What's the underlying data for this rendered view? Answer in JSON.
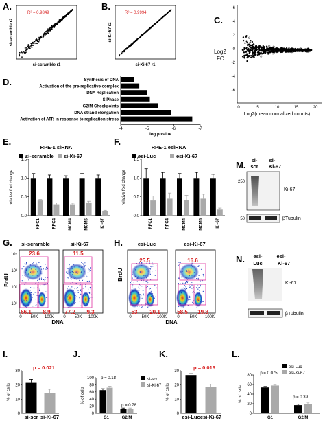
{
  "panels": {
    "A": {
      "label": "A.",
      "xlabel": "si-scramble r1",
      "ylabel": "si-scramble r2",
      "r2": "R² = 0.9849"
    },
    "B": {
      "label": "B.",
      "xlabel": "si-Ki-67 r1",
      "ylabel": "si-Ki-67 r2",
      "r2": "R² = 0.9994"
    },
    "C": {
      "label": "C.",
      "ylabel_line1": "Log2",
      "ylabel_line2": "FC",
      "xlabel": "Log2(mean normalized counts)",
      "xticks": [
        "0",
        "5",
        "10",
        "15",
        "20"
      ],
      "yticks": [
        "6",
        "4",
        "2",
        "0",
        "-2",
        "-4",
        "-6"
      ]
    },
    "D": {
      "label": "D.",
      "xlabel": "log p-value",
      "xticks": [
        "-4",
        "-5",
        "-6",
        "-7"
      ]
    },
    "E": {
      "label": "E.",
      "title": "RPE-1 siRNA",
      "ylabel": "relative fold change",
      "legend": [
        "si-scramble",
        "si-Ki-67"
      ],
      "yticks": [
        "0.0",
        "0.5",
        "1.0",
        "1.5"
      ]
    },
    "F": {
      "label": "F.",
      "title": "RPE-1 esiRNA",
      "ylabel": "relative fold change",
      "legend": [
        "esi-Luc",
        "esi-Ki-67"
      ],
      "yticks": [
        "0.0",
        "0.5",
        "1.0",
        "1.5"
      ]
    },
    "G": {
      "label": "G.",
      "left_title": "si-scramble",
      "right_title": "si-Ki-67",
      "ylabel": "BrdU",
      "xlabel": "DNA",
      "xticks": [
        "0",
        "50K",
        "100K"
      ],
      "yticks": [
        "10⁴",
        "10³",
        "10²",
        "10¹"
      ],
      "left_gates": [
        "23.6",
        "66.1",
        "8.9"
      ],
      "right_gates": [
        "11.5",
        "77.2",
        "9.3"
      ]
    },
    "H": {
      "label": "H.",
      "left_title": "esi-Luc",
      "right_title": "esi-Ki-67",
      "ylabel": "BrdU",
      "xlabel": "DNA",
      "xticks": [
        "0",
        "50K",
        "100K"
      ],
      "left_gates": [
        "25.5",
        "53",
        "20.1"
      ],
      "right_gates": [
        "16.6",
        "58.5",
        "19.8"
      ]
    },
    "I": {
      "label": "I.",
      "ylabel": "% of cells",
      "pvalue": "p = 0.021",
      "yticks": [
        "0",
        "10",
        "20",
        "30"
      ]
    },
    "J": {
      "label": "J.",
      "ylabel": "% of cells",
      "legend": [
        "si-scr",
        "si-Ki-67"
      ],
      "p1": "p = 0.18",
      "p2": "p = 0.78",
      "yticks": [
        "0",
        "20",
        "40",
        "60",
        "80",
        "100"
      ]
    },
    "K": {
      "label": "K.",
      "ylabel": "% of cells",
      "pvalue": "p = 0.016",
      "yticks": [
        "0",
        "10",
        "20",
        "30"
      ]
    },
    "L": {
      "label": "L.",
      "ylabel": "% of cells",
      "legend": [
        "esi-Luc",
        "esi-Ki-67"
      ],
      "p1": "p = 0.075",
      "p2": "p = 0.39",
      "yticks": [
        "0",
        "20",
        "40",
        "60",
        "80"
      ]
    },
    "M": {
      "label": "M.",
      "lane1_line1": "si-",
      "lane1_line2": "scr",
      "lane2_line1": "si-",
      "lane2_line2": "Ki-67",
      "marker_250": "250",
      "marker_50": "50",
      "band1": "Ki-67",
      "band2": "βTubulin"
    },
    "N": {
      "label": "N.",
      "lane1_line1": "esi-",
      "lane1_line2": "Luc",
      "lane2_line1": "esi-",
      "lane2_line2": "Ki-67",
      "band1": "Ki-67",
      "band2": "βTubulin"
    }
  },
  "colors": {
    "series1": "#000000",
    "series2": "#a9a9a9",
    "pvalue": "#d82020"
  },
  "chart_data": [
    {
      "id": "D",
      "type": "bar",
      "categories": [
        "Synthesis of DNA",
        "Activation of the pre-replicative complex",
        "DNA Replication",
        "S Phase",
        "G2/M Checkpoints",
        "DNA strand elongation",
        "Activation of ATR in response to replication stress"
      ],
      "values": [
        -4.5,
        -4.7,
        -5.0,
        -5.1,
        -5.4,
        -5.9,
        -6.7
      ],
      "xlabel": "log p-value",
      "xlim": [
        -4,
        -7
      ]
    },
    {
      "id": "E",
      "type": "bar",
      "title": "RPE-1 siRNA",
      "categories": [
        "RFC1",
        "RFC4",
        "MCM4",
        "MCM5",
        "Ki-67"
      ],
      "series": [
        {
          "name": "si-scramble",
          "values": [
            1.0,
            1.0,
            1.0,
            1.0,
            1.0
          ],
          "errors": [
            0.12,
            0.08,
            0.06,
            0.12,
            0.08
          ]
        },
        {
          "name": "si-Ki-67",
          "values": [
            0.4,
            0.3,
            0.3,
            0.35,
            0.12
          ],
          "errors": [
            0.03,
            0.04,
            0.03,
            0.03,
            0.02
          ]
        }
      ],
      "ylabel": "relative fold change",
      "ylim": [
        0,
        1.5
      ]
    },
    {
      "id": "F",
      "type": "bar",
      "title": "RPE-1 esiRNA",
      "categories": [
        "RFC1",
        "RFC4",
        "MCM4",
        "MCM5",
        "Ki-67"
      ],
      "series": [
        {
          "name": "esi-Luc",
          "values": [
            1.0,
            1.0,
            1.0,
            1.0,
            1.0
          ],
          "errors": [
            0.25,
            0.15,
            0.12,
            0.15,
            0.1
          ]
        },
        {
          "name": "esi-Ki-67",
          "values": [
            0.4,
            0.45,
            0.42,
            0.45,
            0.16
          ],
          "errors": [
            0.12,
            0.15,
            0.12,
            0.12,
            0.04
          ]
        }
      ],
      "ylabel": "relative fold change",
      "ylim": [
        0,
        1.5
      ]
    },
    {
      "id": "I",
      "type": "bar",
      "categories": [
        "si-scr",
        "si-Ki-67"
      ],
      "values": [
        21.5,
        14.5
      ],
      "errors": [
        2.5,
        2.5
      ],
      "ylabel": "% of cells",
      "ylim": [
        0,
        30
      ]
    },
    {
      "id": "J",
      "type": "bar",
      "categories": [
        "G1",
        "G2/M"
      ],
      "series": [
        {
          "name": "si-scr",
          "values": [
            65,
            12
          ],
          "errors": [
            4,
            3
          ]
        },
        {
          "name": "si-Ki-67",
          "values": [
            72,
            13
          ],
          "errors": [
            4,
            2
          ]
        }
      ],
      "ylabel": "% of cells",
      "ylim": [
        0,
        100
      ]
    },
    {
      "id": "K",
      "type": "bar",
      "categories": [
        "esi-Luc",
        "esi-Ki-67"
      ],
      "values": [
        27,
        18.5
      ],
      "errors": [
        1,
        2
      ],
      "ylabel": "% of cells",
      "ylim": [
        0,
        30
      ]
    },
    {
      "id": "L",
      "type": "bar",
      "categories": [
        "G1",
        "G2/M"
      ],
      "series": [
        {
          "name": "esi-Luc",
          "values": [
            54,
            17
          ],
          "errors": [
            2,
            2
          ]
        },
        {
          "name": "esi-Ki-67",
          "values": [
            58,
            20
          ],
          "errors": [
            2,
            3
          ]
        }
      ],
      "ylabel": "% of cells",
      "ylim": [
        0,
        80
      ]
    }
  ]
}
